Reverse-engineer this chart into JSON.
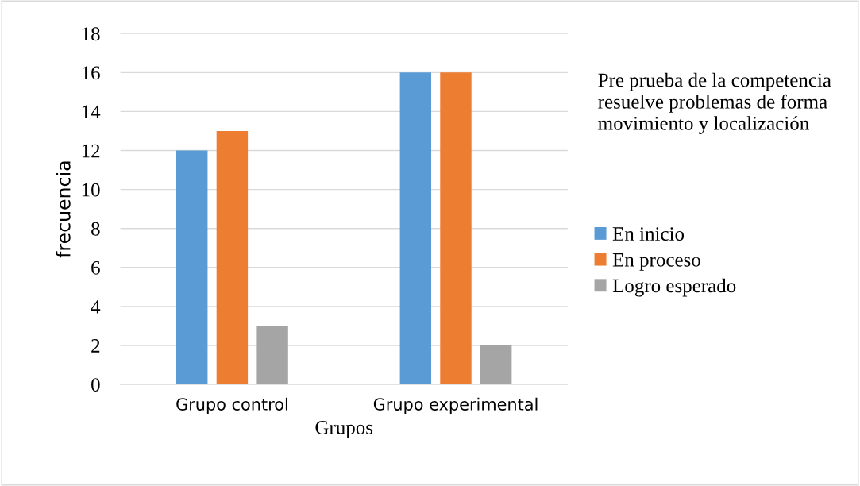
{
  "chart_data": {
    "type": "bar",
    "xlabel": "Grupos",
    "ylabel": "frecuencia",
    "legend_title": "Pre prueba de la competencia resuelve problemas de forma movimiento y localización",
    "categories": [
      "Grupo control",
      "Grupo experimental"
    ],
    "series": [
      {
        "name": "En inicio",
        "color": "#5b9bd5",
        "values": [
          12,
          16
        ]
      },
      {
        "name": "En proceso",
        "color": "#ed7d31",
        "values": [
          13,
          16
        ]
      },
      {
        "name": "Logro esperado",
        "color": "#a5a5a5",
        "values": [
          3,
          2
        ]
      }
    ],
    "ylim": [
      0,
      18
    ],
    "yticks": [
      0,
      2,
      4,
      6,
      8,
      10,
      12,
      14,
      16,
      18
    ],
    "grid": "y",
    "legend": "right"
  }
}
